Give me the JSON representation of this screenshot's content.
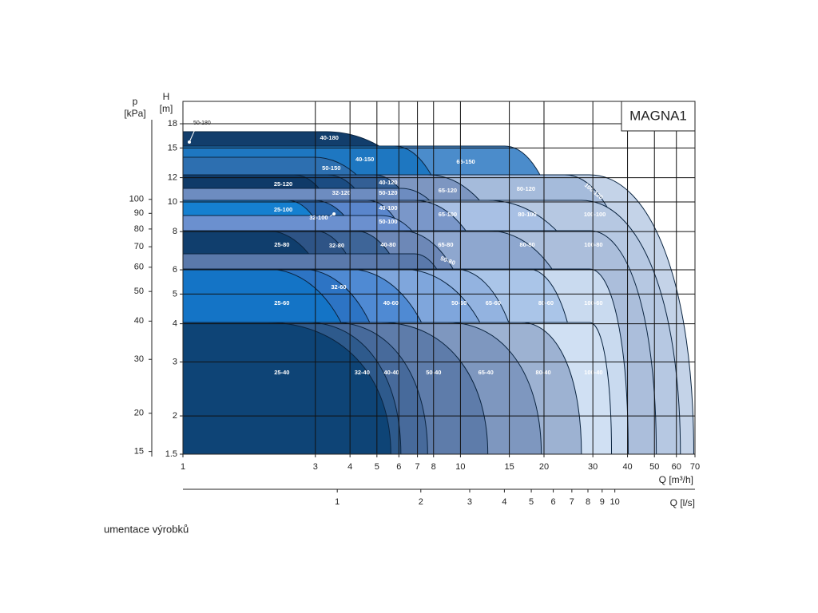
{
  "chart_data": {
    "type": "region-map",
    "title": "MAGNA1",
    "xlabel": "Q [m³/h]",
    "x2label": "Q [l/s]",
    "ylabel": "H",
    "yunit": "[m]",
    "y2label": "p",
    "y2unit": "[kPa]",
    "log_x": true,
    "log_y": true,
    "grid": true,
    "xlim": [
      1,
      70
    ],
    "xticks": [
      1,
      3,
      4,
      5,
      6,
      7,
      8,
      10,
      15,
      20,
      30,
      40,
      50,
      60,
      70
    ],
    "x2lim": [
      0.278,
      19.44
    ],
    "x2ticks": [
      1,
      2,
      3,
      4,
      5,
      6,
      7,
      8,
      9,
      10
    ],
    "ylim": [
      1.5,
      21.3
    ],
    "yticks": [
      1.5,
      2,
      3,
      4,
      5,
      6,
      8,
      10,
      12,
      15,
      18
    ],
    "y2lim": [
      14.7,
      209
    ],
    "y2ticks": [
      15,
      20,
      30,
      40,
      50,
      60,
      70,
      80,
      90,
      100
    ],
    "regions": [
      "50-180",
      "40-180",
      "40-150",
      "50-150",
      "65-150",
      "25-120",
      "32-120",
      "40-120",
      "50-120",
      "65-120",
      "80-120",
      "100-120",
      "25-100",
      "32-100",
      "40-100",
      "50-100",
      "65-100",
      "80-100",
      "100-100",
      "25-80",
      "32-80",
      "40-80",
      "65-80",
      "50-80",
      "80-80",
      "100-80",
      "25-60",
      "32-60",
      "40-60",
      "50-60",
      "65-60",
      "80-60",
      "100-60",
      "25-40",
      "32-40",
      "40-40",
      "50-40",
      "65-40",
      "80-40",
      "100-40"
    ]
  },
  "caption": "umentace výrobků"
}
